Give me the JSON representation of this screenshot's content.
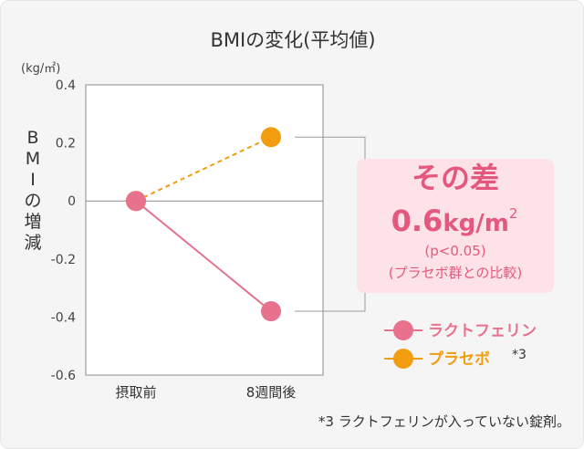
{
  "chart_data": {
    "type": "line",
    "title": "BMIの変化(平均値)",
    "ylabel_chars": [
      "B",
      "M",
      "I",
      "の",
      "増",
      "減"
    ],
    "yunit": "(kg/㎡)",
    "ylim": [
      -0.6,
      0.4
    ],
    "yticks": [
      0.4,
      0.2,
      0,
      -0.2,
      -0.4,
      -0.6
    ],
    "ytick_labels": [
      "0.4",
      "0.2",
      "0",
      "-0.2",
      "-0.4",
      "-0.6"
    ],
    "categories": [
      "摂取前",
      "8週間後"
    ],
    "grid": "zero-line only",
    "legend_position": "right",
    "series": [
      {
        "name": "ラクトフェリン",
        "values": [
          0,
          -0.38
        ],
        "color": "#e8718d",
        "line_style": "solid"
      },
      {
        "name": "プラセボ",
        "values": [
          0,
          0.22
        ],
        "color": "#f29c0f",
        "line_style": "dashed"
      }
    ]
  },
  "callout": {
    "line1": "その差",
    "value": "0.6",
    "unit_main": "kg/m",
    "unit_sup": "2",
    "pvalue": "(p<0.05)",
    "comparison": "(プラセボ群との比較)",
    "bg_color": "#fde3e8",
    "text_color": "#e5587d"
  },
  "legend": {
    "placebo_mark": "*3"
  },
  "footnote": "*3 ラクトフェリンが入っていない錠剤。"
}
